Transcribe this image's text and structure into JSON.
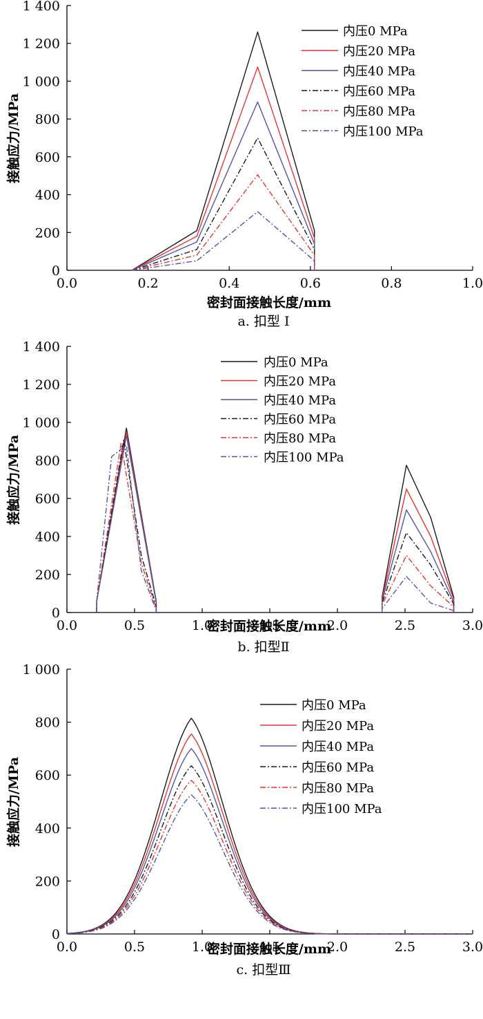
{
  "colors": {
    "black": "#1a1a1a",
    "red": "#e8342f",
    "blue": "#4f56a8"
  },
  "chart_data": [
    {
      "type": "line",
      "caption": "a. 扣型 Ⅰ",
      "xlabel": "密封面接触长度/mm",
      "ylabel": "接触应力/MPa",
      "xlim": [
        0,
        1.0
      ],
      "ylim": [
        0,
        1400
      ],
      "xticks": [
        "0.0",
        "0.2",
        "0.4",
        "0.6",
        "0.8",
        "1.0"
      ],
      "yticks": [
        "0",
        "200",
        "400",
        "600",
        "800",
        "1 000",
        "1 200",
        "1 400"
      ],
      "legend_position": "top-right",
      "series": [
        {
          "name": "内压0 MPa",
          "color": "black",
          "dash": "solid",
          "x": [
            0.16,
            0.32,
            0.47,
            0.61,
            0.61
          ],
          "y": [
            0,
            210,
            1260,
            210,
            0
          ]
        },
        {
          "name": "内压20 MPa",
          "color": "red",
          "dash": "solid",
          "x": [
            0.16,
            0.32,
            0.47,
            0.61,
            0.61
          ],
          "y": [
            0,
            180,
            1075,
            170,
            0
          ]
        },
        {
          "name": "内压40 MPa",
          "color": "blue",
          "dash": "solid",
          "x": [
            0.16,
            0.32,
            0.47,
            0.61,
            0.61
          ],
          "y": [
            0,
            150,
            890,
            140,
            0
          ]
        },
        {
          "name": "内压60 MPa",
          "color": "black",
          "dash": "dashdot",
          "x": [
            0.16,
            0.32,
            0.47,
            0.61,
            0.61
          ],
          "y": [
            0,
            110,
            700,
            110,
            0
          ]
        },
        {
          "name": "内压80 MPa",
          "color": "red",
          "dash": "dashdot",
          "x": [
            0.16,
            0.32,
            0.47,
            0.61,
            0.61
          ],
          "y": [
            0,
            80,
            505,
            80,
            0
          ]
        },
        {
          "name": "内压100 MPa",
          "color": "blue",
          "dash": "dashdot",
          "x": [
            0.16,
            0.32,
            0.47,
            0.61,
            0.61
          ],
          "y": [
            0,
            50,
            310,
            50,
            0
          ]
        }
      ]
    },
    {
      "type": "line",
      "caption": "b. 扣型Ⅱ",
      "xlabel": "密封面接触长度/mm",
      "ylabel": "接触应力/MPa",
      "xlim": [
        0,
        3.0
      ],
      "ylim": [
        0,
        1400
      ],
      "xticks": [
        "0.0",
        "0.5",
        "1.0",
        "1.5",
        "2.0",
        "2.5",
        "3.0"
      ],
      "yticks": [
        "0",
        "200",
        "400",
        "600",
        "800",
        "1 000",
        "1 200",
        "1 400"
      ],
      "legend_position": "top-center",
      "series": [
        {
          "name": "内压0 MPa",
          "color": "black",
          "dash": "solid",
          "x": [
            0.22,
            0.22,
            0.44,
            0.66,
            0.66,
            null,
            2.33,
            2.33,
            2.51,
            2.69,
            2.86,
            2.86
          ],
          "y": [
            0,
            60,
            970,
            60,
            0,
            null,
            0,
            80,
            775,
            500,
            80,
            0
          ]
        },
        {
          "name": "内压20 MPa",
          "color": "red",
          "dash": "solid",
          "x": [
            0.22,
            0.22,
            0.44,
            0.66,
            0.66,
            null,
            2.33,
            2.33,
            2.51,
            2.69,
            2.86,
            2.86
          ],
          "y": [
            0,
            60,
            950,
            55,
            0,
            null,
            0,
            70,
            650,
            400,
            70,
            0
          ]
        },
        {
          "name": "内压40 MPa",
          "color": "blue",
          "dash": "solid",
          "x": [
            0.22,
            0.22,
            0.44,
            0.66,
            0.66,
            null,
            2.33,
            2.33,
            2.51,
            2.69,
            2.86,
            2.86
          ],
          "y": [
            0,
            60,
            930,
            50,
            0,
            null,
            0,
            60,
            540,
            320,
            55,
            0
          ]
        },
        {
          "name": "内压60 MPa",
          "color": "black",
          "dash": "dashdot",
          "x": [
            0.22,
            0.22,
            0.42,
            0.55,
            0.66,
            null,
            2.33,
            2.33,
            2.51,
            2.69,
            2.86,
            2.86
          ],
          "y": [
            0,
            60,
            910,
            300,
            30,
            null,
            0,
            50,
            420,
            250,
            45,
            0
          ]
        },
        {
          "name": "内压80 MPa",
          "color": "red",
          "dash": "dashdot",
          "x": [
            0.22,
            0.22,
            0.4,
            0.55,
            0.66,
            null,
            2.33,
            2.33,
            2.51,
            2.69,
            2.86,
            2.86
          ],
          "y": [
            0,
            60,
            890,
            260,
            20,
            null,
            0,
            40,
            300,
            140,
            30,
            0
          ]
        },
        {
          "name": "内压100 MPa",
          "color": "blue",
          "dash": "dashdot",
          "x": [
            0.22,
            0.22,
            0.33,
            0.44,
            0.55,
            0.66,
            null,
            2.33,
            2.33,
            2.51,
            2.69,
            2.86,
            2.86
          ],
          "y": [
            0,
            60,
            820,
            880,
            220,
            10,
            null,
            0,
            20,
            190,
            50,
            10,
            0
          ]
        }
      ]
    },
    {
      "type": "line",
      "caption": "c. 扣型Ⅲ",
      "xlabel": "密封面接触长度/mm",
      "ylabel": "接触应力/MPa",
      "xlim": [
        0,
        3.0
      ],
      "ylim": [
        0,
        1000
      ],
      "xticks": [
        "0.0",
        "0.5",
        "1.0",
        "1.5",
        "2.0",
        "2.5",
        "3.0"
      ],
      "yticks": [
        "0",
        "200",
        "400",
        "600",
        "800",
        "1 000"
      ],
      "legend_position": "top-right",
      "peak_x": 0.92,
      "series": [
        {
          "name": "内压0 MPa",
          "color": "black",
          "dash": "solid",
          "peak": 815
        },
        {
          "name": "内压20 MPa",
          "color": "red",
          "dash": "solid",
          "peak": 755
        },
        {
          "name": "内压40 MPa",
          "color": "blue",
          "dash": "solid",
          "peak": 700
        },
        {
          "name": "内压60 MPa",
          "color": "black",
          "dash": "dashdot",
          "peak": 635
        },
        {
          "name": "内压80 MPa",
          "color": "red",
          "dash": "dashdot",
          "peak": 580
        },
        {
          "name": "内压100 MPa",
          "color": "blue",
          "dash": "dashdot",
          "peak": 525
        }
      ]
    }
  ]
}
